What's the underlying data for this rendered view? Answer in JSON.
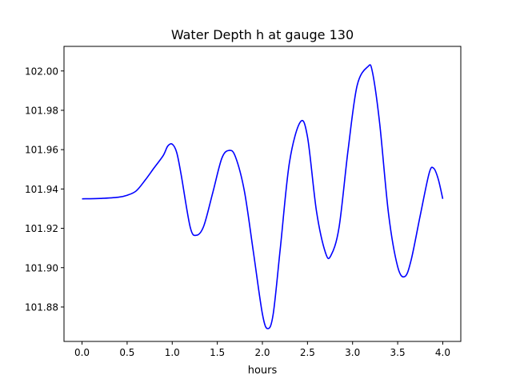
{
  "chart_data": {
    "type": "line",
    "title": "Water Depth h at gauge 130",
    "xlabel": "hours",
    "ylabel": "",
    "xlim": [
      -0.2,
      4.2
    ],
    "ylim": [
      101.8625,
      102.0125
    ],
    "xticks": [
      0.0,
      0.5,
      1.0,
      1.5,
      2.0,
      2.5,
      3.0,
      3.5,
      4.0
    ],
    "xtick_labels": [
      "0.0",
      "0.5",
      "1.0",
      "1.5",
      "2.0",
      "2.5",
      "3.0",
      "3.5",
      "4.0"
    ],
    "yticks": [
      101.88,
      101.9,
      101.92,
      101.94,
      101.96,
      101.98,
      102.0
    ],
    "ytick_labels": [
      "101.88",
      "101.90",
      "101.92",
      "101.94",
      "101.96",
      "101.98",
      "102.00"
    ],
    "grid": false,
    "line_color": "#0000ff",
    "series": [
      {
        "name": "",
        "x": [
          0.0,
          0.2,
          0.4,
          0.5,
          0.6,
          0.7,
          0.8,
          0.9,
          0.95,
          1.0,
          1.05,
          1.1,
          1.2,
          1.27,
          1.35,
          1.45,
          1.55,
          1.63,
          1.7,
          1.8,
          1.9,
          2.0,
          2.06,
          2.12,
          2.2,
          2.3,
          2.42,
          2.5,
          2.6,
          2.7,
          2.76,
          2.85,
          2.95,
          3.05,
          3.17,
          3.22,
          3.3,
          3.4,
          3.5,
          3.58,
          3.65,
          3.75,
          3.85,
          3.9,
          3.95,
          4.0
        ],
        "y": [
          101.935,
          101.9352,
          101.9358,
          101.9368,
          101.939,
          101.9445,
          101.9508,
          101.957,
          101.9618,
          101.9628,
          101.9585,
          101.947,
          101.9205,
          101.9165,
          101.9212,
          101.9382,
          101.9556,
          101.9596,
          101.9565,
          101.939,
          101.908,
          101.8765,
          101.869,
          101.8765,
          101.9105,
          101.9535,
          101.974,
          101.9665,
          101.9286,
          101.9075,
          101.9062,
          101.9205,
          101.9598,
          101.9925,
          102.0022,
          101.9995,
          101.9735,
          101.9269,
          101.9005,
          101.8955,
          101.904,
          101.9265,
          101.9482,
          101.9505,
          101.945,
          101.935
        ]
      }
    ]
  }
}
